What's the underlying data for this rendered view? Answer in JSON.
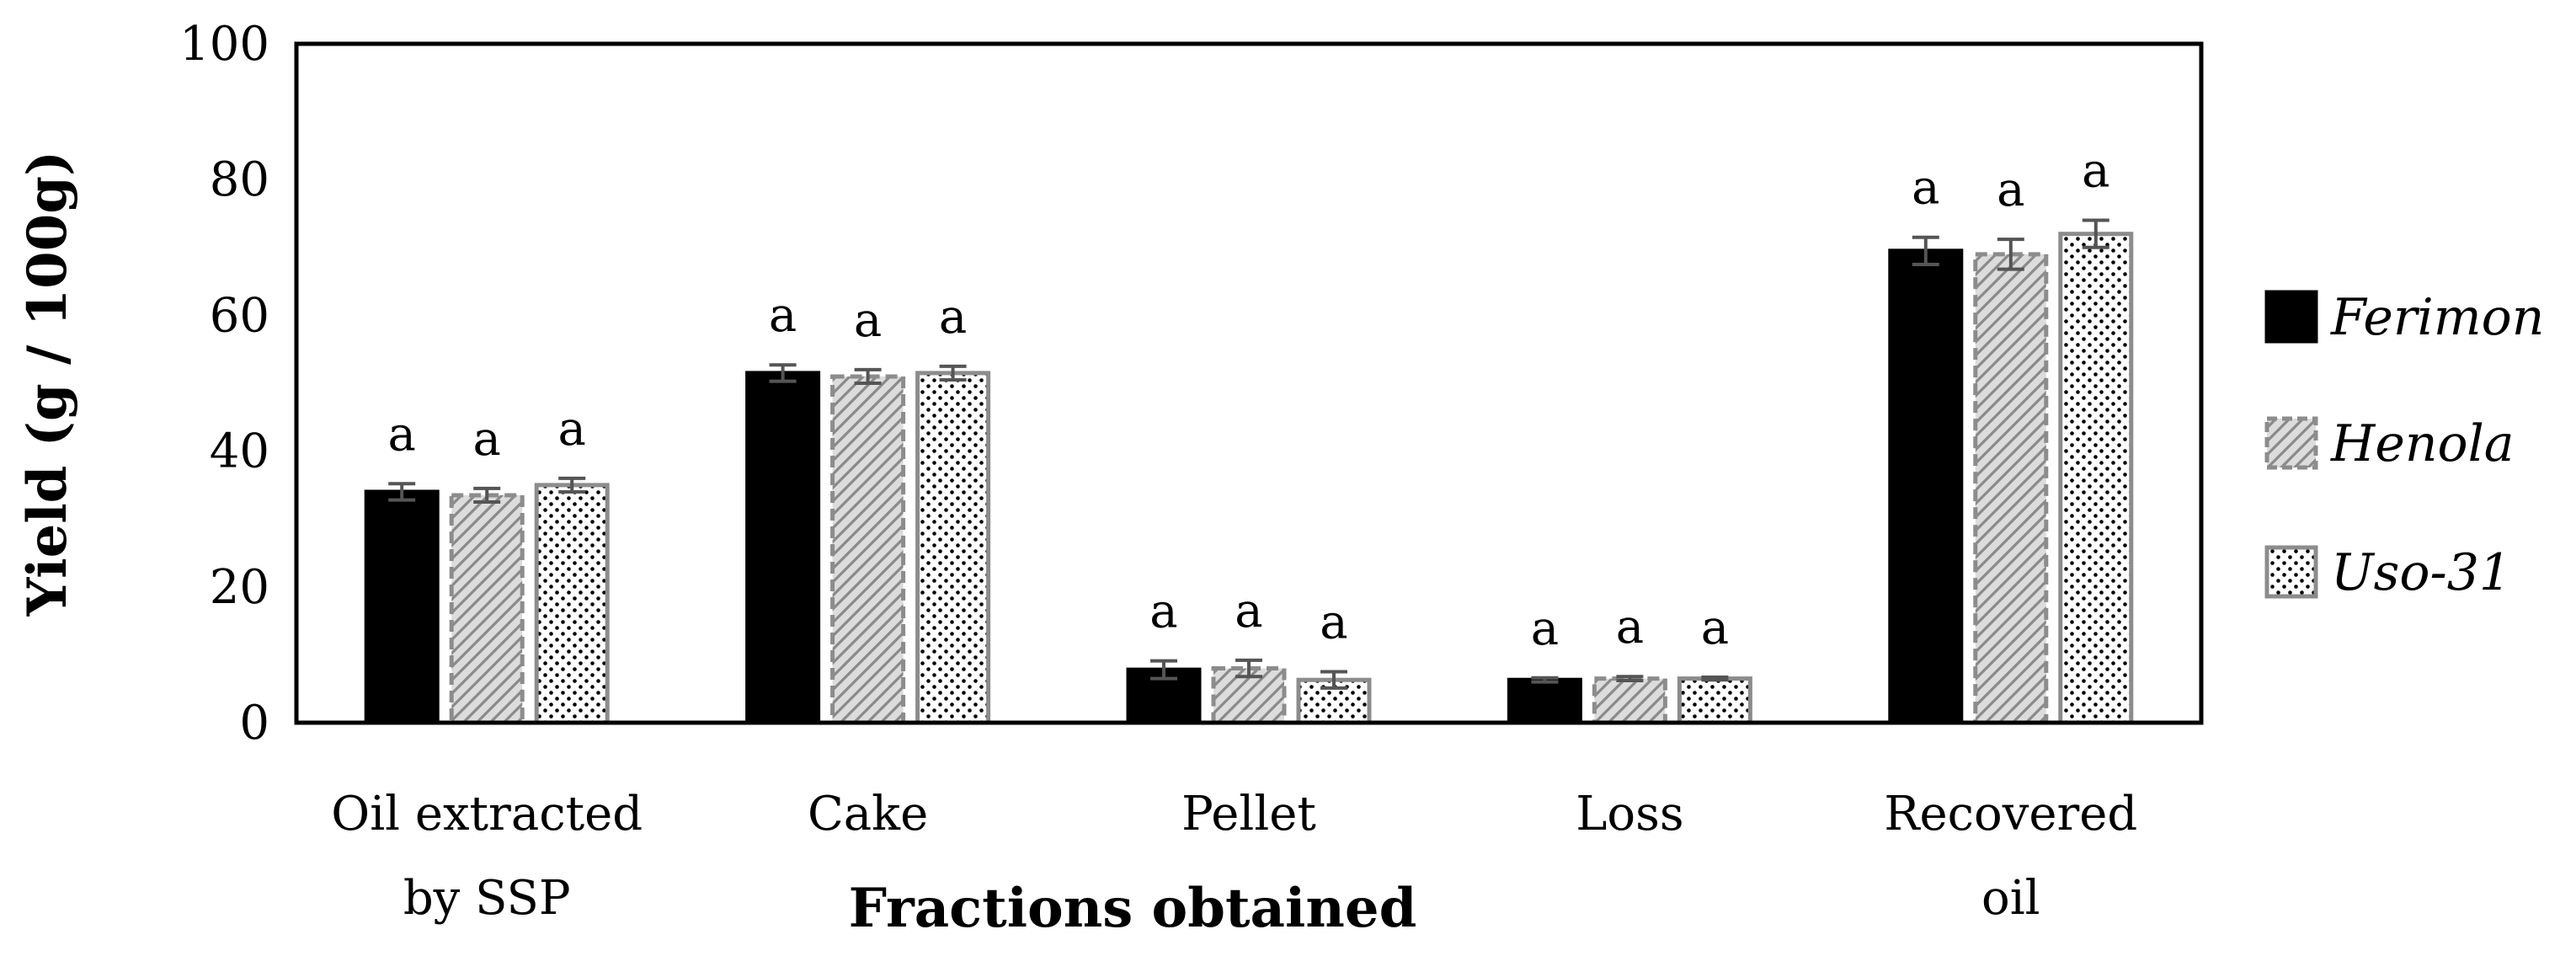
{
  "chart_data": {
    "type": "bar",
    "xlabel": "Fractions obtained",
    "ylabel": "Yield (g / 100g)",
    "ylim": [
      0,
      100
    ],
    "yticks": [
      0,
      20,
      40,
      60,
      80,
      100
    ],
    "grid": false,
    "legend_position": "right",
    "categories": [
      [
        "Oil extracted",
        "by SSP"
      ],
      [
        "Cake"
      ],
      [
        "Pellet"
      ],
      [
        "Loss"
      ],
      [
        "Recovered",
        "oil"
      ]
    ],
    "series": [
      {
        "name": "Ferimon",
        "pattern": "solid",
        "color": "#000000",
        "values": [
          34.0,
          51.5,
          7.8,
          6.3,
          69.5
        ],
        "errors": [
          1.2,
          1.2,
          1.3,
          0.3,
          2.0
        ],
        "labels": [
          "a",
          "a",
          "a",
          "a",
          "a"
        ]
      },
      {
        "name": "Henola",
        "pattern": "diagonal-hatch",
        "color": "#8c8c8c",
        "values": [
          33.5,
          51.0,
          8.0,
          6.5,
          69.0
        ],
        "errors": [
          1.0,
          1.0,
          1.2,
          0.3,
          2.2
        ],
        "labels": [
          "a",
          "a",
          "a",
          "a",
          "a"
        ]
      },
      {
        "name": "Uso-31",
        "pattern": "dotted",
        "color": "#8c8c8c",
        "values": [
          35.0,
          51.5,
          6.3,
          6.5,
          72.0
        ],
        "errors": [
          1.0,
          1.0,
          1.2,
          0.2,
          2.0
        ],
        "labels": [
          "a",
          "a",
          "a",
          "a",
          "a"
        ]
      }
    ]
  }
}
